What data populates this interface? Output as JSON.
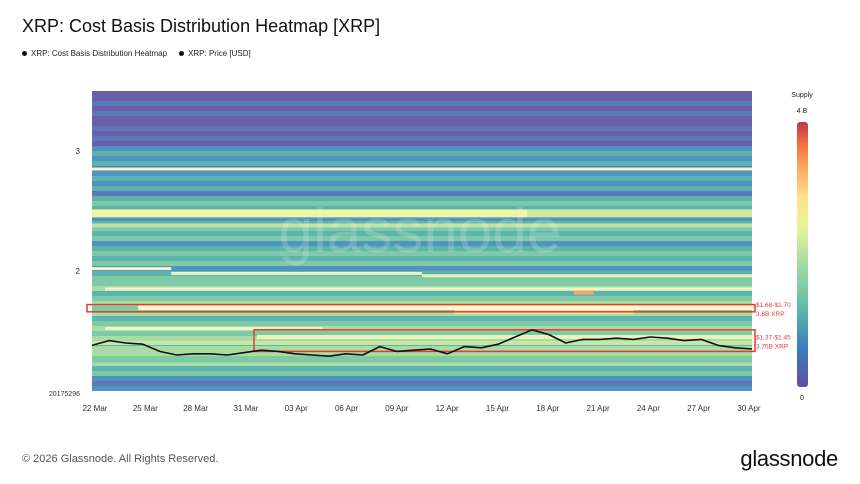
{
  "header": {
    "title": "XRP: Cost Basis Distribution Heatmap [XRP]"
  },
  "legend": [
    {
      "label": "XRP: Cost Basis Distribution Heatmap",
      "icon": "dot"
    },
    {
      "label": "XRP: Price [USD]",
      "icon": "dot"
    }
  ],
  "colorbar": {
    "title": "Supply",
    "max_label": "4 B",
    "min_label": "0"
  },
  "watermark": "glassnode",
  "footer": {
    "copyright": "© 2026 Glassnode. All Rights Reserved.",
    "logo": "glassnode"
  },
  "chart_data": {
    "type": "heatmap",
    "title": "XRP: Cost Basis Distribution Heatmap [XRP]",
    "x_tick_labels": [
      "22 Mar",
      "25 Mar",
      "28 Mar",
      "31 Mar",
      "03 Apr",
      "06 Apr",
      "09 Apr",
      "12 Apr",
      "15 Apr",
      "18 Apr",
      "21 Apr",
      "24 Apr",
      "27 Apr",
      "30 Apr"
    ],
    "y_tick_labels": [
      "3",
      "2"
    ],
    "y_bottom_label": "20175296",
    "ylim": [
      1.0,
      3.5
    ],
    "colorscale_range": [
      0,
      4000000000
    ],
    "colorscale_labels": [
      "0",
      "4 B"
    ],
    "price_series": {
      "name": "XRP: Price [USD]",
      "color": "#111111",
      "dates": [
        "22 Mar",
        "23 Mar",
        "24 Mar",
        "25 Mar",
        "26 Mar",
        "27 Mar",
        "28 Mar",
        "29 Mar",
        "30 Mar",
        "31 Mar",
        "01 Apr",
        "02 Apr",
        "03 Apr",
        "04 Apr",
        "05 Apr",
        "06 Apr",
        "07 Apr",
        "08 Apr",
        "09 Apr",
        "10 Apr",
        "11 Apr",
        "12 Apr",
        "13 Apr",
        "14 Apr",
        "15 Apr",
        "16 Apr",
        "17 Apr",
        "18 Apr",
        "19 Apr",
        "20 Apr",
        "21 Apr",
        "22 Apr",
        "23 Apr",
        "24 Apr",
        "25 Apr",
        "26 Apr",
        "27 Apr",
        "28 Apr",
        "29 Apr",
        "30 Apr"
      ],
      "values": [
        1.38,
        1.42,
        1.4,
        1.39,
        1.33,
        1.3,
        1.31,
        1.31,
        1.3,
        1.32,
        1.34,
        1.33,
        1.31,
        1.3,
        1.29,
        1.31,
        1.3,
        1.37,
        1.33,
        1.34,
        1.35,
        1.31,
        1.37,
        1.36,
        1.39,
        1.45,
        1.51,
        1.47,
        1.4,
        1.43,
        1.43,
        1.44,
        1.43,
        1.45,
        1.44,
        1.42,
        1.43,
        1.38,
        1.36,
        1.35
      ]
    },
    "highlight_zones": [
      {
        "label_range": "$1.68-$1.70",
        "label_supply": "3.8B XRP",
        "y_range": [
          1.66,
          1.72
        ],
        "color": "#e03c31"
      },
      {
        "label_range": "$1.37-$1.45",
        "label_supply": "3.75B XRP",
        "y_range": [
          1.33,
          1.51
        ],
        "color": "#e03c31"
      }
    ]
  }
}
